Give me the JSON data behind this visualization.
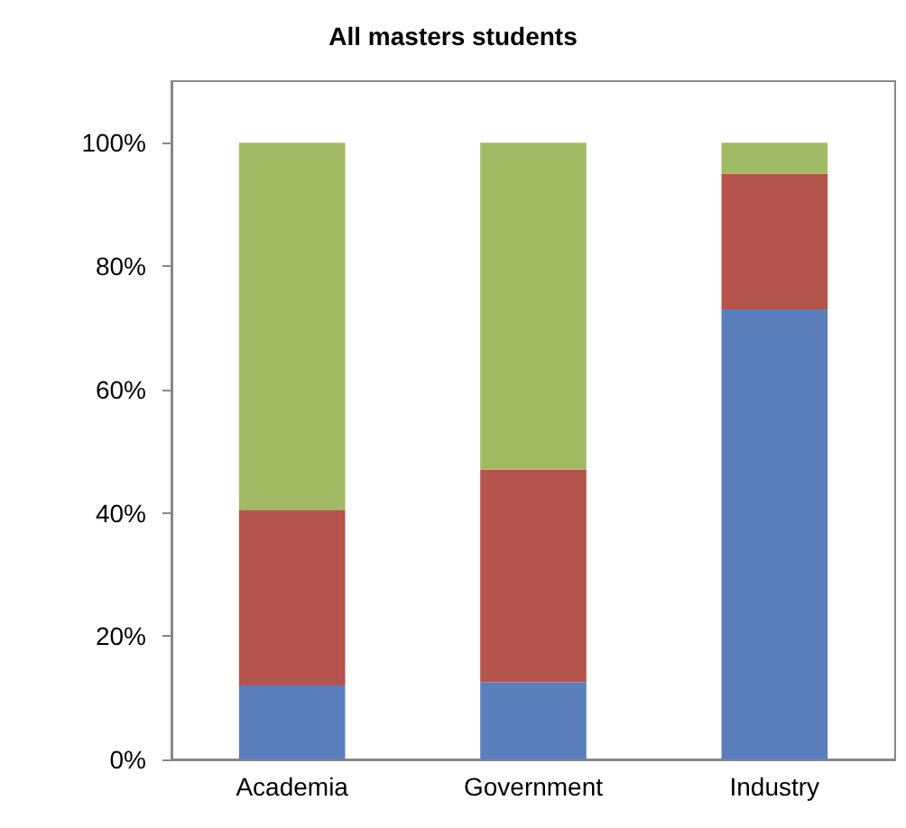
{
  "chart_data": {
    "type": "bar",
    "title": "All masters students",
    "categories": [
      "Academia",
      "Government",
      "Industry"
    ],
    "stacked": true,
    "series": [
      {
        "color": "#5b7fbd",
        "values": [
          12,
          12.5,
          73
        ]
      },
      {
        "color": "#b5534d",
        "values": [
          28.5,
          34.5,
          22
        ]
      },
      {
        "color": "#a1bb64",
        "values": [
          59.5,
          53,
          5
        ]
      }
    ],
    "ylim": [
      0,
      110
    ],
    "yticks": [
      {
        "value": 0,
        "label": "0%"
      },
      {
        "value": 20,
        "label": "20%"
      },
      {
        "value": 40,
        "label": "40%"
      },
      {
        "value": 60,
        "label": "60%"
      },
      {
        "value": 80,
        "label": "80%"
      },
      {
        "value": 100,
        "label": "100%"
      }
    ],
    "grid": false,
    "legend": false
  }
}
